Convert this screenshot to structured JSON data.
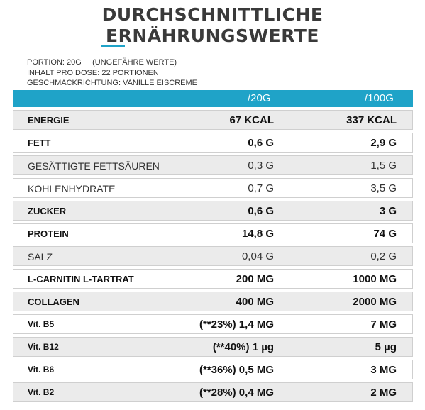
{
  "title": {
    "line1": "DURCHSCHNITTLICHE",
    "line2": "ERNÄHRUNGSWERTE"
  },
  "meta": {
    "portion": "PORTION: 20G     (UNGEFÄHRE WERTE)",
    "content": "INHALT PRO DOSE: 22 PORTIONEN",
    "flavor": "GESCHMACKRICHTUNG: VANILLE EISCREME"
  },
  "header": {
    "col1": "/20G",
    "col2": "/100G",
    "accent_color": "#1fa3c8"
  },
  "rows": [
    {
      "label": "ENERGIE",
      "v20": "67 KCAL",
      "v100": "337 KCAL"
    },
    {
      "label": "FETT",
      "v20": "0,6 G",
      "v100": "2,9 G"
    },
    {
      "label": "GESÄTTIGTE FETTSÄUREN",
      "v20": "0,3 G",
      "v100": "1,5 G"
    },
    {
      "label": "KOHLENHYDRATE",
      "v20": "0,7 G",
      "v100": "3,5 G"
    },
    {
      "label": "ZUCKER",
      "v20": "0,6 G",
      "v100": "3  G"
    },
    {
      "label": "PROTEIN",
      "v20": "14,8 G",
      "v100": "74 G"
    },
    {
      "label": "SALZ",
      "v20": "0,04 G",
      "v100": "0,2 G"
    },
    {
      "label": "L-CARNITIN L-TARTRAT",
      "v20": "200 MG",
      "v100": "1000 MG"
    },
    {
      "label": "COLLAGEN",
      "v20": "400 MG",
      "v100": "2000 MG"
    },
    {
      "label": "Vit. B5",
      "v20": "(**23%) 1,4 MG",
      "v100": "7 MG"
    },
    {
      "label": "Vit. B12",
      "v20": "(**40%) 1 µg",
      "v100": "5 µg"
    },
    {
      "label": "Vit. B6",
      "v20": "(**36%) 0,5 MG",
      "v100": "3 MG"
    },
    {
      "label": "Vit. B2",
      "v20": "(**28%) 0,4 MG",
      "v100": "2 MG"
    }
  ]
}
